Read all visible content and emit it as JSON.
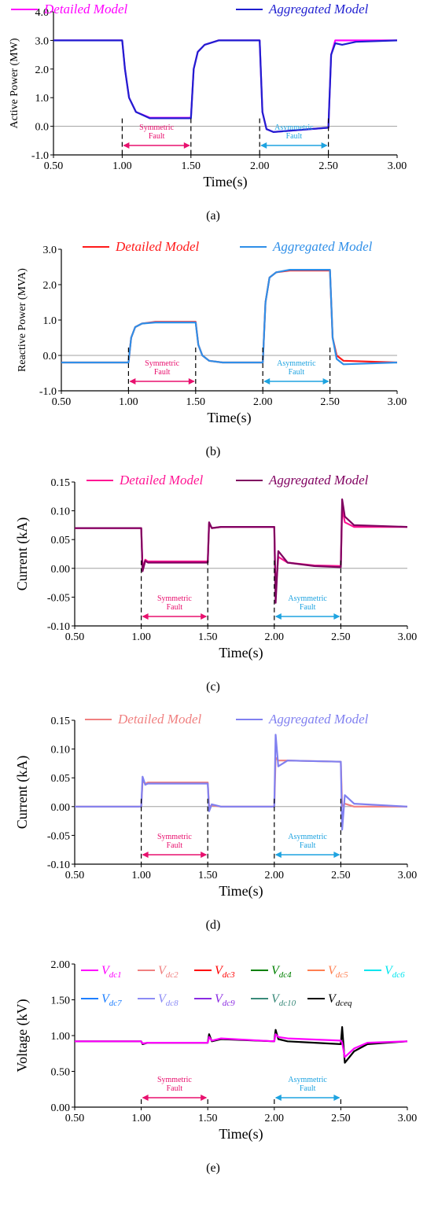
{
  "chart_data": [
    {
      "type": "line",
      "panel_label": "(a)",
      "xlabel": "Time(s)",
      "ylabel": "Active Power (MW)",
      "xlim": [
        0.5,
        3.0
      ],
      "ylim": [
        -1.0,
        4.0
      ],
      "xticks": [
        "0.50",
        "1.00",
        "1.50",
        "2.00",
        "2.50",
        "3.00"
      ],
      "yticks": [
        "-1.0",
        "0.0",
        "1.0",
        "2.0",
        "3.0",
        "4.0"
      ],
      "legend_position": "top",
      "series": [
        {
          "name": "Detailed Model",
          "color": "#ff00ff",
          "x": [
            0.5,
            1.0,
            1.02,
            1.05,
            1.1,
            1.2,
            1.5,
            1.52,
            1.55,
            1.6,
            1.7,
            2.0,
            2.02,
            2.05,
            2.1,
            2.5,
            2.52,
            2.55,
            2.6,
            3.0
          ],
          "y": [
            3.0,
            3.0,
            2.0,
            1.0,
            0.5,
            0.3,
            0.3,
            2.0,
            2.6,
            2.85,
            3.0,
            3.0,
            0.5,
            -0.1,
            -0.2,
            -0.05,
            2.5,
            3.0,
            3.0,
            3.0
          ]
        },
        {
          "name": "Aggregated Model",
          "color": "#1f1fd0",
          "x": [
            0.5,
            1.0,
            1.02,
            1.05,
            1.1,
            1.2,
            1.5,
            1.52,
            1.55,
            1.6,
            1.7,
            2.0,
            2.02,
            2.05,
            2.1,
            2.5,
            2.52,
            2.55,
            2.6,
            2.7,
            3.0
          ],
          "y": [
            3.0,
            3.0,
            2.0,
            1.0,
            0.5,
            0.28,
            0.28,
            2.0,
            2.6,
            2.85,
            3.0,
            3.0,
            0.5,
            -0.1,
            -0.2,
            -0.05,
            2.5,
            2.9,
            2.85,
            2.95,
            3.0
          ]
        }
      ],
      "annotations": [
        {
          "text": "Symmetric\nFault",
          "x_start": 1.0,
          "x_end": 1.5,
          "color": "#e8106e"
        },
        {
          "text": "Asymmetric\nFault",
          "x_start": 2.0,
          "x_end": 2.5,
          "color": "#1ea3e0"
        }
      ]
    },
    {
      "type": "line",
      "panel_label": "(b)",
      "xlabel": "Time(s)",
      "ylabel": "Reactive Power (MVA)",
      "xlim": [
        0.5,
        3.0
      ],
      "ylim": [
        -1.0,
        3.0
      ],
      "xticks": [
        "0.50",
        "1.00",
        "1.50",
        "2.00",
        "2.50",
        "3.00"
      ],
      "yticks": [
        "-1.0",
        "0.0",
        "1.0",
        "2.0",
        "3.0"
      ],
      "legend_position": "top",
      "series": [
        {
          "name": "Detailed Model",
          "color": "#ff1a1a",
          "x": [
            0.5,
            1.0,
            1.02,
            1.05,
            1.1,
            1.2,
            1.5,
            1.52,
            1.55,
            1.6,
            1.7,
            2.0,
            2.02,
            2.05,
            2.1,
            2.2,
            2.5,
            2.52,
            2.55,
            2.6,
            3.0
          ],
          "y": [
            -0.2,
            -0.2,
            0.5,
            0.8,
            0.9,
            0.95,
            0.95,
            0.3,
            0.0,
            -0.15,
            -0.2,
            -0.2,
            1.5,
            2.2,
            2.35,
            2.4,
            2.4,
            0.5,
            0.0,
            -0.15,
            -0.2
          ]
        },
        {
          "name": "Aggregated Model",
          "color": "#2f8fe8",
          "x": [
            0.5,
            1.0,
            1.02,
            1.05,
            1.1,
            1.2,
            1.5,
            1.52,
            1.55,
            1.6,
            1.7,
            2.0,
            2.02,
            2.05,
            2.1,
            2.2,
            2.5,
            2.52,
            2.55,
            2.6,
            3.0
          ],
          "y": [
            -0.2,
            -0.2,
            0.5,
            0.8,
            0.9,
            0.93,
            0.93,
            0.3,
            0.0,
            -0.15,
            -0.2,
            -0.2,
            1.5,
            2.2,
            2.35,
            2.42,
            2.42,
            0.5,
            -0.1,
            -0.25,
            -0.2
          ]
        }
      ],
      "annotations": [
        {
          "text": "Symmetric\nFault",
          "x_start": 1.0,
          "x_end": 1.5,
          "color": "#e8106e"
        },
        {
          "text": "Asymmetric\nFault",
          "x_start": 2.0,
          "x_end": 2.5,
          "color": "#1ea3e0"
        }
      ]
    },
    {
      "type": "line",
      "panel_label": "(c)",
      "xlabel": "Time(s)",
      "ylabel": "Current (kA)",
      "xlim": [
        0.5,
        3.0
      ],
      "ylim": [
        -0.1,
        0.15
      ],
      "xticks": [
        "0.50",
        "1.00",
        "1.50",
        "2.00",
        "2.50",
        "3.00"
      ],
      "yticks": [
        "-0.10",
        "-0.05",
        "0.00",
        "0.05",
        "0.10",
        "0.15"
      ],
      "legend_position": "top",
      "series": [
        {
          "name": "Detailed Model",
          "color": "#ff1493",
          "x": [
            0.5,
            1.0,
            1.01,
            1.03,
            1.05,
            1.1,
            1.5,
            1.51,
            1.53,
            1.6,
            2.0,
            2.01,
            2.03,
            2.1,
            2.3,
            2.5,
            2.51,
            2.53,
            2.6,
            3.0
          ],
          "y": [
            0.07,
            0.07,
            0.0,
            0.015,
            0.012,
            0.012,
            0.012,
            0.078,
            0.07,
            0.072,
            0.072,
            -0.04,
            0.02,
            0.01,
            0.005,
            0.004,
            0.105,
            0.08,
            0.072,
            0.072
          ]
        },
        {
          "name": "Aggregated Model",
          "color": "#800060",
          "x": [
            0.5,
            1.0,
            1.01,
            1.03,
            1.05,
            1.1,
            1.5,
            1.51,
            1.53,
            1.6,
            2.0,
            2.01,
            2.03,
            2.1,
            2.3,
            2.5,
            2.51,
            2.53,
            2.6,
            3.0
          ],
          "y": [
            0.07,
            0.07,
            -0.005,
            0.013,
            0.01,
            0.01,
            0.01,
            0.08,
            0.07,
            0.072,
            0.072,
            -0.06,
            0.03,
            0.01,
            0.004,
            0.002,
            0.12,
            0.09,
            0.075,
            0.072
          ]
        }
      ],
      "annotations": [
        {
          "text": "Symmetric\nFault",
          "x_start": 1.0,
          "x_end": 1.5,
          "color": "#e8106e"
        },
        {
          "text": "Asymmetric\nFault",
          "x_start": 2.0,
          "x_end": 2.5,
          "color": "#1ea3e0"
        }
      ]
    },
    {
      "type": "line",
      "panel_label": "(d)",
      "xlabel": "Time(s)",
      "ylabel": "Current (kA)",
      "xlim": [
        0.5,
        3.0
      ],
      "ylim": [
        -0.1,
        0.15
      ],
      "xticks": [
        "0.50",
        "1.00",
        "1.50",
        "2.00",
        "2.50",
        "3.00"
      ],
      "yticks": [
        "-0.10",
        "-0.05",
        "0.00",
        "0.05",
        "0.10",
        "0.15"
      ],
      "legend_position": "top",
      "series": [
        {
          "name": "Detailed Model",
          "color": "#f08080",
          "x": [
            0.5,
            1.0,
            1.01,
            1.03,
            1.05,
            1.5,
            1.51,
            1.53,
            1.6,
            2.0,
            2.01,
            2.03,
            2.1,
            2.5,
            2.51,
            2.53,
            2.6,
            3.0
          ],
          "y": [
            0.0,
            0.0,
            0.045,
            0.04,
            0.042,
            0.042,
            0.0,
            0.002,
            0.0,
            0.0,
            0.085,
            0.08,
            0.08,
            0.078,
            0.0,
            0.005,
            0.0,
            0.0
          ]
        },
        {
          "name": "Aggregated Model",
          "color": "#8080f0",
          "x": [
            0.5,
            1.0,
            1.01,
            1.03,
            1.05,
            1.5,
            1.51,
            1.53,
            1.6,
            2.0,
            2.01,
            2.03,
            2.1,
            2.5,
            2.51,
            2.53,
            2.6,
            3.0
          ],
          "y": [
            0.0,
            0.0,
            0.052,
            0.038,
            0.04,
            0.04,
            -0.008,
            0.004,
            0.0,
            0.0,
            0.125,
            0.07,
            0.08,
            0.078,
            -0.04,
            0.02,
            0.005,
            0.0
          ]
        }
      ],
      "annotations": [
        {
          "text": "Symmetric\nFault",
          "x_start": 1.0,
          "x_end": 1.5,
          "color": "#e8106e"
        },
        {
          "text": "Asymmetric\nFault",
          "x_start": 2.0,
          "x_end": 2.5,
          "color": "#1ea3e0"
        }
      ]
    },
    {
      "type": "line",
      "panel_label": "(e)",
      "xlabel": "Time(s)",
      "ylabel": "Voltage (kV)",
      "xlim": [
        0.5,
        3.0
      ],
      "ylim": [
        0.0,
        2.0
      ],
      "xticks": [
        "0.50",
        "1.00",
        "1.50",
        "2.00",
        "2.50",
        "3.00"
      ],
      "yticks": [
        "0.00",
        "0.50",
        "1.00",
        "1.50",
        "2.00"
      ],
      "legend_position": "top",
      "legend_rows": [
        [
          {
            "base": "V",
            "sub": "dc1",
            "color": "#ff00ff"
          },
          {
            "base": "V",
            "sub": "dc2",
            "color": "#f08080"
          },
          {
            "base": "V",
            "sub": "dc3",
            "color": "#ff0000"
          },
          {
            "base": "V",
            "sub": "dc4",
            "color": "#008000"
          },
          {
            "base": "V",
            "sub": "dc5",
            "color": "#ff7f50"
          },
          {
            "base": "V",
            "sub": "dc6",
            "color": "#00e5ee"
          }
        ],
        [
          {
            "base": "V",
            "sub": "dc7",
            "color": "#1e7fff"
          },
          {
            "base": "V",
            "sub": "dc8",
            "color": "#8c8cf5"
          },
          {
            "base": "V",
            "sub": "dc9",
            "color": "#8a2be2"
          },
          {
            "base": "V",
            "sub": "dc10",
            "color": "#3a8a7a"
          },
          {
            "base": "V",
            "sub": "dceq",
            "color": "#000000"
          }
        ]
      ],
      "series": [
        {
          "name": "Vdceq",
          "color": "#000000",
          "x": [
            0.5,
            1.0,
            1.01,
            1.05,
            1.5,
            1.51,
            1.53,
            1.6,
            2.0,
            2.01,
            2.03,
            2.1,
            2.5,
            2.51,
            2.53,
            2.6,
            2.7,
            3.0
          ],
          "y": [
            0.92,
            0.92,
            0.88,
            0.9,
            0.9,
            1.02,
            0.92,
            0.95,
            0.92,
            1.08,
            0.95,
            0.92,
            0.88,
            1.12,
            0.62,
            0.78,
            0.88,
            0.92
          ]
        },
        {
          "name": "Vdc1",
          "color": "#ff00ff",
          "x": [
            0.5,
            1.0,
            1.01,
            1.05,
            1.5,
            1.51,
            1.53,
            1.6,
            2.0,
            2.01,
            2.03,
            2.1,
            2.5,
            2.51,
            2.53,
            2.6,
            2.7,
            3.0
          ],
          "y": [
            0.92,
            0.92,
            0.89,
            0.9,
            0.9,
            0.98,
            0.93,
            0.96,
            0.92,
            1.02,
            0.98,
            0.96,
            0.93,
            0.9,
            0.7,
            0.82,
            0.9,
            0.92
          ]
        }
      ],
      "annotations": [
        {
          "text": "Symmetric\nFault",
          "x_start": 1.0,
          "x_end": 1.5,
          "color": "#e8106e"
        },
        {
          "text": "Asymmetric\nFault",
          "x_start": 2.0,
          "x_end": 2.5,
          "color": "#1ea3e0"
        }
      ]
    }
  ]
}
